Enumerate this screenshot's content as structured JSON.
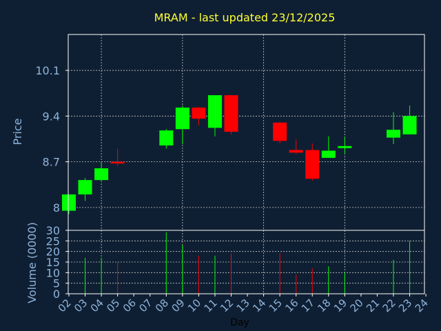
{
  "colors": {
    "background": "#0f1f33",
    "title": "#ffff33",
    "axis_text": "#8fb4da",
    "frame": "#ffffff",
    "grid": "#c8c8c8",
    "up": "#00ff00",
    "down": "#ff0000"
  },
  "chart_data": {
    "type": "candlestick",
    "title": "MRAM - last updated 23/12/2025",
    "xlabel": "Day",
    "price_panel": {
      "ylabel": "Price",
      "ylim": [
        7.65,
        10.65
      ],
      "yticks": [
        8,
        8.7,
        9.4,
        10.1
      ],
      "ytick_labels": [
        "8",
        "8.7",
        "9.4",
        "10.1"
      ]
    },
    "volume_panel": {
      "ylabel": "Volume (0000)",
      "ylim": [
        0,
        30
      ],
      "yticks": [
        0,
        5,
        10,
        15,
        20,
        25,
        30
      ],
      "ytick_labels": [
        "0",
        "5",
        "10",
        "15",
        "20",
        "25",
        "30"
      ]
    },
    "x_ticks": [
      "02",
      "03",
      "04",
      "05",
      "06",
      "07",
      "08",
      "09",
      "10",
      "11",
      "12",
      "13",
      "14",
      "15",
      "16",
      "17",
      "18",
      "19",
      "20",
      "21",
      "22",
      "23",
      "24"
    ],
    "candles": [
      {
        "day": "02",
        "open": 7.95,
        "high": 8.2,
        "low": 7.9,
        "close": 8.2,
        "volume": 0
      },
      {
        "day": "03",
        "open": 8.2,
        "high": 8.45,
        "low": 8.1,
        "close": 8.42,
        "volume": 17
      },
      {
        "day": "04",
        "open": 8.42,
        "high": 8.7,
        "low": 8.4,
        "close": 8.6,
        "volume": 17
      },
      {
        "day": "05",
        "open": 8.7,
        "high": 8.9,
        "low": 8.64,
        "close": 8.68,
        "volume": 15
      },
      {
        "day": "08",
        "open": 8.95,
        "high": 9.2,
        "low": 8.9,
        "close": 9.18,
        "volume": 29
      },
      {
        "day": "09",
        "open": 9.2,
        "high": 9.56,
        "low": 8.97,
        "close": 9.53,
        "volume": 23
      },
      {
        "day": "10",
        "open": 9.53,
        "high": 9.54,
        "low": 9.26,
        "close": 9.36,
        "volume": 18
      },
      {
        "day": "11",
        "open": 9.22,
        "high": 9.72,
        "low": 9.09,
        "close": 9.72,
        "volume": 18
      },
      {
        "day": "12",
        "open": 9.72,
        "high": 9.72,
        "low": 9.12,
        "close": 9.16,
        "volume": 19
      },
      {
        "day": "15",
        "open": 9.3,
        "high": 9.31,
        "low": 8.98,
        "close": 9.02,
        "volume": 19
      },
      {
        "day": "16",
        "open": 8.88,
        "high": 9.04,
        "low": 8.82,
        "close": 8.84,
        "volume": 9
      },
      {
        "day": "17",
        "open": 8.88,
        "high": 8.98,
        "low": 8.41,
        "close": 8.44,
        "volume": 12
      },
      {
        "day": "18",
        "open": 8.76,
        "high": 9.09,
        "low": 8.76,
        "close": 8.87,
        "volume": 13
      },
      {
        "day": "19",
        "open": 8.91,
        "high": 9.08,
        "low": 8.82,
        "close": 8.94,
        "volume": 10
      },
      {
        "day": "22",
        "open": 9.07,
        "high": 9.46,
        "low": 8.97,
        "close": 9.19,
        "volume": 16
      },
      {
        "day": "23",
        "open": 9.12,
        "high": 9.56,
        "low": 9.12,
        "close": 9.4,
        "volume": 25
      }
    ]
  }
}
